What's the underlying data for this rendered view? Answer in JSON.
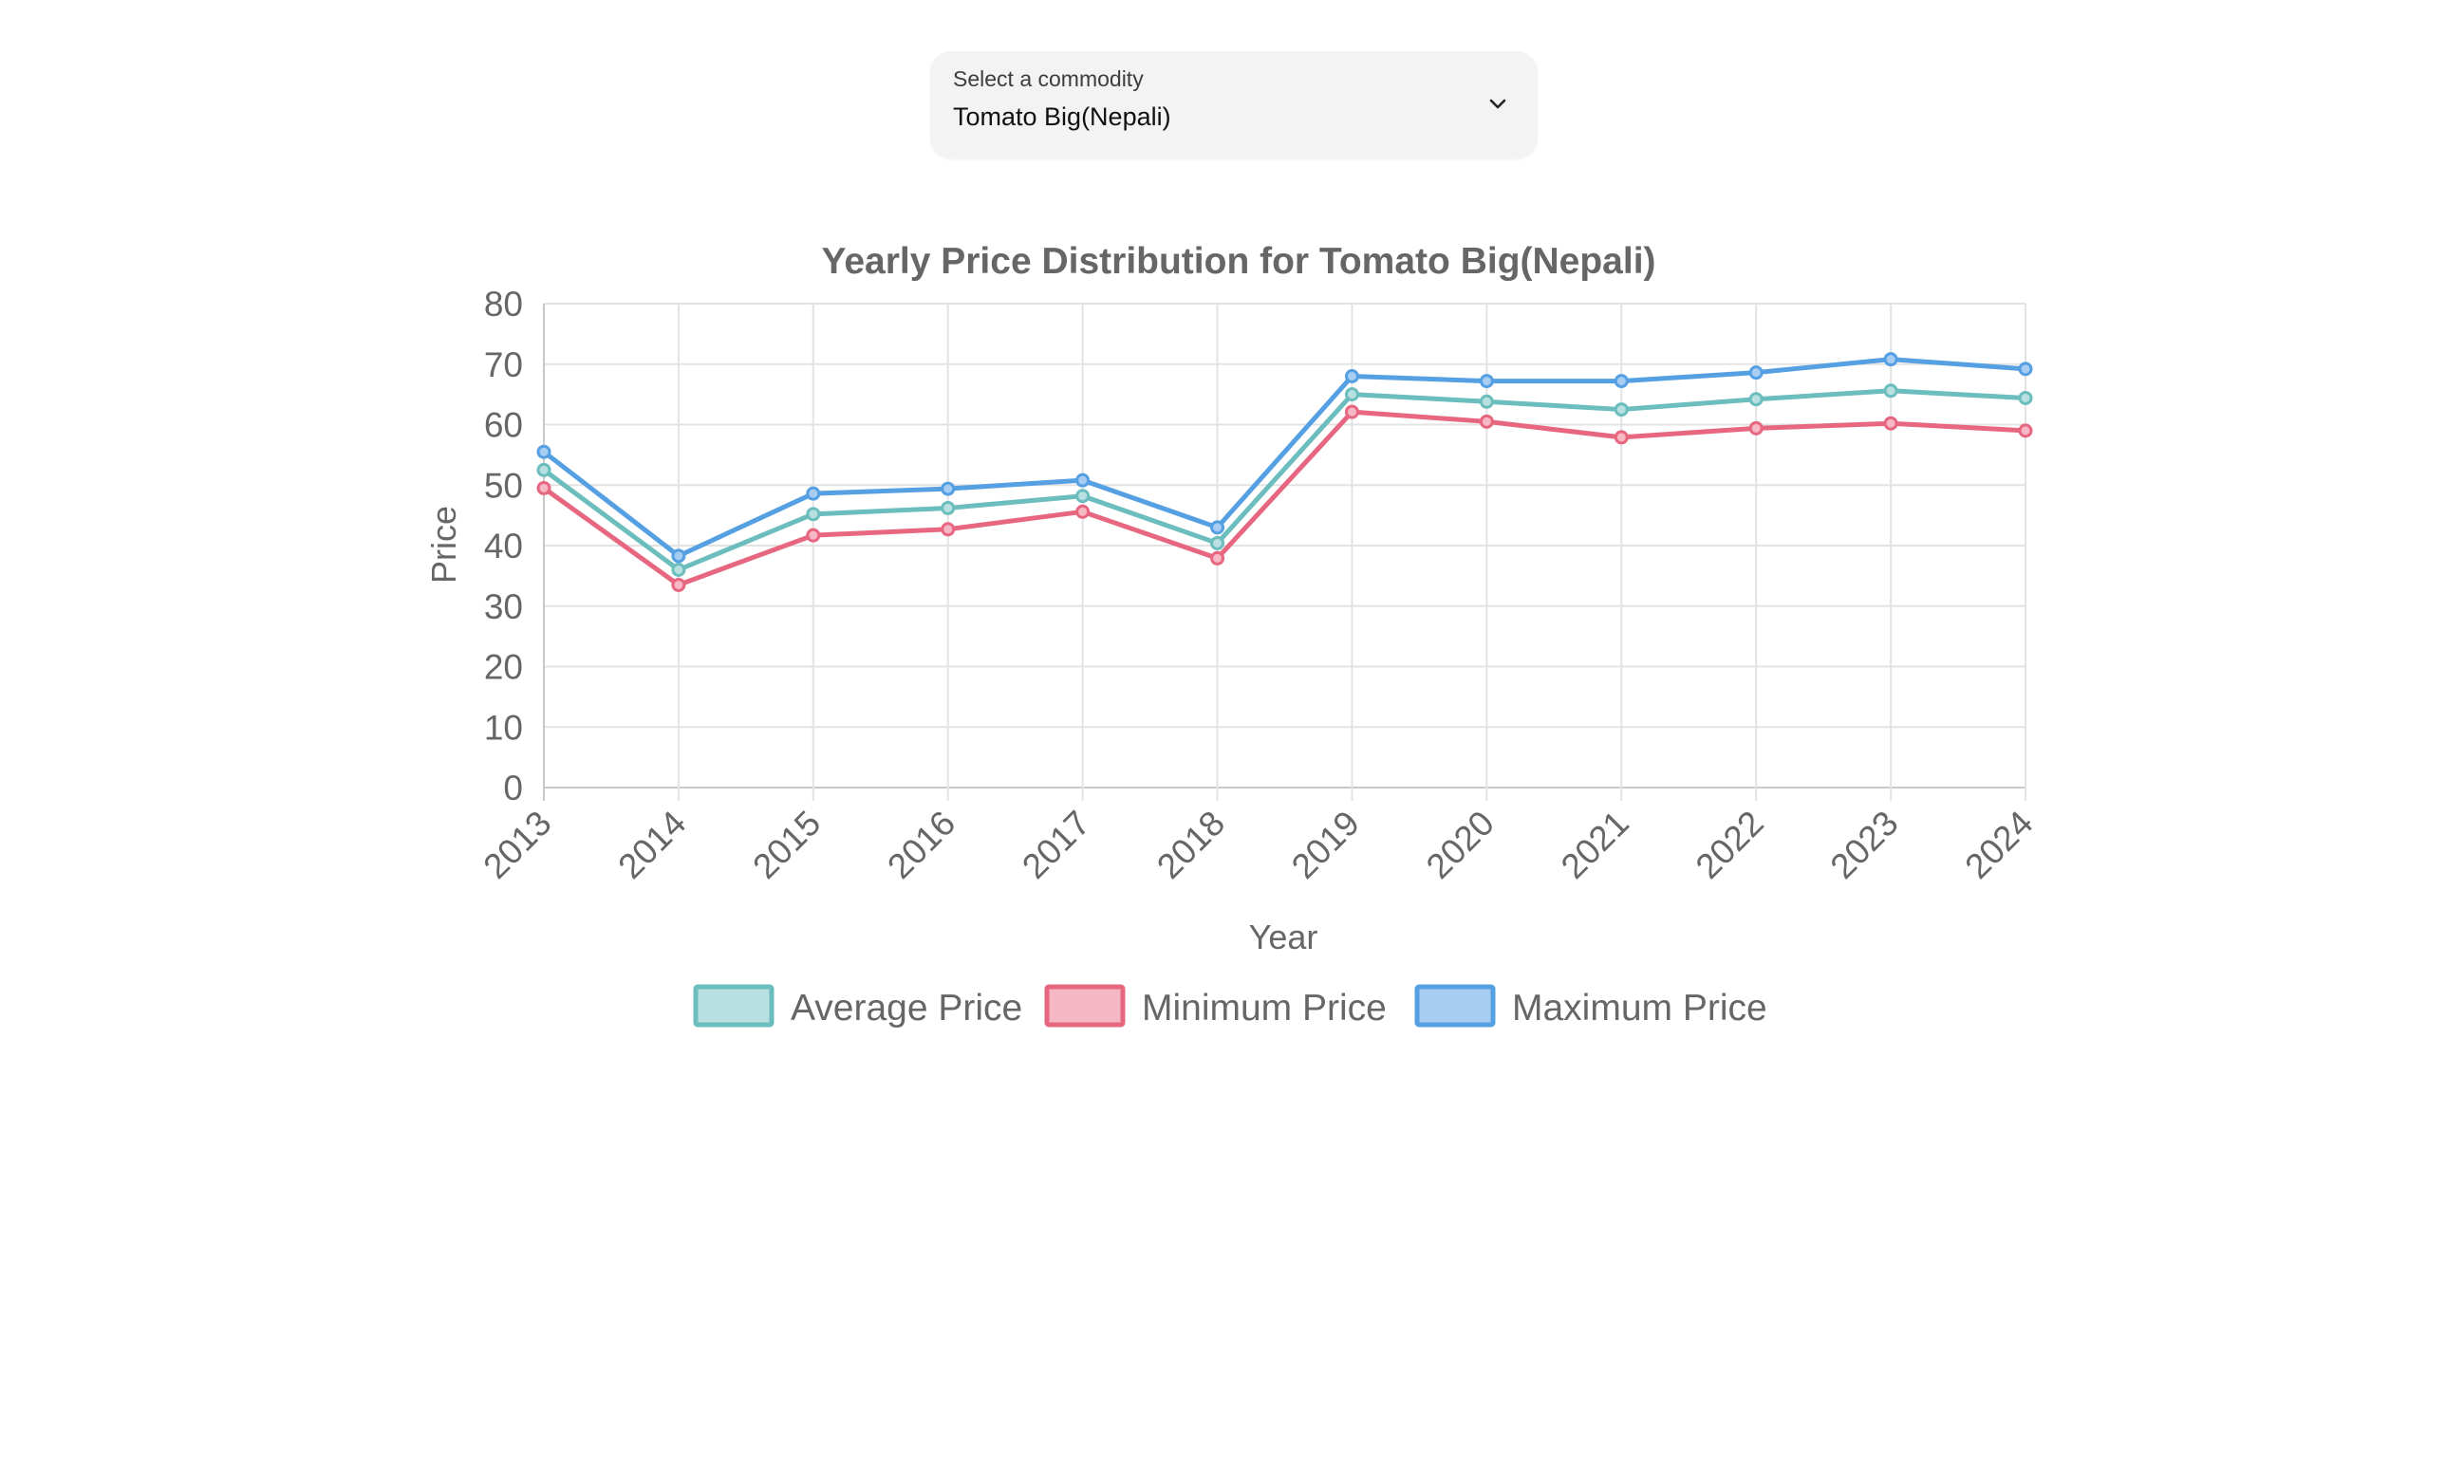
{
  "commodity_select": {
    "label": "Select a commodity",
    "value": "Tomato Big(Nepali)",
    "icon": "chevron-down-icon"
  },
  "chart_data": {
    "type": "line",
    "title": "Yearly Price Distribution for Tomato Big(Nepali)",
    "xlabel": "Year",
    "ylabel": "Price",
    "ylim": [
      0,
      80
    ],
    "yticks": [
      0,
      10,
      20,
      30,
      40,
      50,
      60,
      70,
      80
    ],
    "grid": true,
    "legend_position": "bottom",
    "categories": [
      "2013",
      "2014",
      "2015",
      "2016",
      "2017",
      "2018",
      "2019",
      "2020",
      "2021",
      "2022",
      "2023",
      "2024"
    ],
    "series": [
      {
        "name": "Average Price",
        "color": "#6cbdbd",
        "fill": "#b8e0e0",
        "values": [
          52.5,
          36.0,
          45.2,
          46.2,
          48.2,
          40.4,
          65.0,
          63.8,
          62.5,
          64.2,
          65.6,
          64.4
        ]
      },
      {
        "name": "Minimum Price",
        "color": "#e6677f",
        "fill": "#f6b8c5",
        "values": [
          49.5,
          33.5,
          41.7,
          42.7,
          45.6,
          37.9,
          62.1,
          60.5,
          57.9,
          59.4,
          60.2,
          59.0
        ]
      },
      {
        "name": "Maximum Price",
        "color": "#55a0e2",
        "fill": "#a8cdf2",
        "values": [
          55.5,
          38.3,
          48.6,
          49.4,
          50.8,
          43.0,
          68.0,
          67.2,
          67.2,
          68.6,
          70.8,
          69.2
        ]
      }
    ]
  }
}
